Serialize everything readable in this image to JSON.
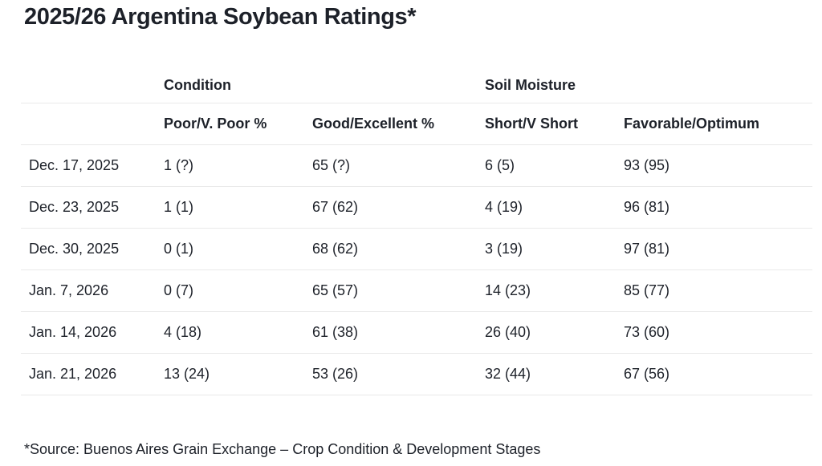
{
  "chart_data": {
    "type": "table",
    "title": "2025/26 Argentina Soybean Ratings*",
    "column_groups": [
      {
        "label": "Condition",
        "span_columns": [
          "Poor/V. Poor %",
          "Good/Excellent %"
        ]
      },
      {
        "label": "Soil Moisture",
        "span_columns": [
          "Short/V Short",
          "Favorable/Optimum"
        ]
      }
    ],
    "columns": [
      "",
      "Poor/V. Poor %",
      "Good/Excellent %",
      "Short/V Short",
      "Favorable/Optimum"
    ],
    "rows": [
      [
        "Dec. 17, 2025",
        "1 (?)",
        "65 (?)",
        "6 (5)",
        "93 (95)"
      ],
      [
        "Dec. 23, 2025",
        "1 (1)",
        "67 (62)",
        "4 (19)",
        "96 (81)"
      ],
      [
        "Dec. 30, 2025",
        "0 (1)",
        "68 (62)",
        "3 (19)",
        "97 (81)"
      ],
      [
        "Jan. 7, 2026",
        "0 (7)",
        "65 (57)",
        "14 (23)",
        "85 (77)"
      ],
      [
        "Jan. 14, 2026",
        "4 (18)",
        "61 (38)",
        "26 (40)",
        "73 (60)"
      ],
      [
        "Jan. 21, 2026",
        "13 (24)",
        "53 (26)",
        "32 (44)",
        "67 (56)"
      ]
    ],
    "source_note": "*Source: Buenos Aires Grain Exchange – Crop Condition & Development Stages",
    "layout": {
      "grid": "horizontal-row-dividers-only",
      "header_alignment": "left",
      "value_alignment": "left"
    }
  },
  "colors": {
    "background": "#ffffff",
    "text": "#1d2129",
    "divider": "#e9e9e9"
  }
}
